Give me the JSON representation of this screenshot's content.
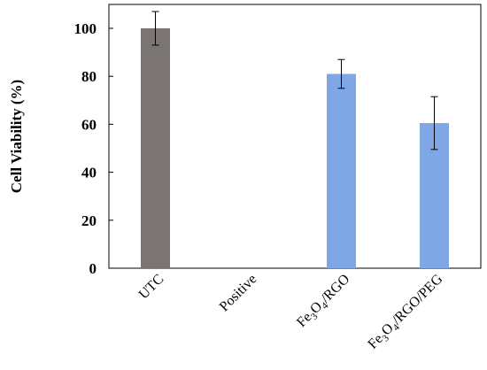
{
  "chart_data": {
    "type": "bar",
    "ylabel": "Cell Viability (%)",
    "xlabel": "",
    "ylim": [
      0,
      110
    ],
    "yticks": [
      0,
      20,
      40,
      60,
      80,
      100
    ],
    "categories": [
      {
        "label": "UTC",
        "parts": [
          {
            "t": "UTC"
          }
        ]
      },
      {
        "label": "Positive",
        "parts": [
          {
            "t": "Positive"
          }
        ]
      },
      {
        "label": "Fe3O4/RGO",
        "parts": [
          {
            "t": "Fe"
          },
          {
            "t": "3",
            "sub": true
          },
          {
            "t": "O"
          },
          {
            "t": "4",
            "sub": true
          },
          {
            "t": "/RGO"
          }
        ]
      },
      {
        "label": "Fe3O4/RGO/PEG",
        "parts": [
          {
            "t": "Fe"
          },
          {
            "t": "3",
            "sub": true
          },
          {
            "t": "O"
          },
          {
            "t": "4",
            "sub": true
          },
          {
            "t": "/RGO/PEG"
          }
        ]
      }
    ],
    "values": [
      100,
      null,
      81,
      60.5
    ],
    "errors": [
      7,
      null,
      6,
      11
    ],
    "colors": [
      "#7a7574",
      null,
      "#7fa7e6",
      "#7fa7e6"
    ],
    "grid": false,
    "legend": "none"
  }
}
